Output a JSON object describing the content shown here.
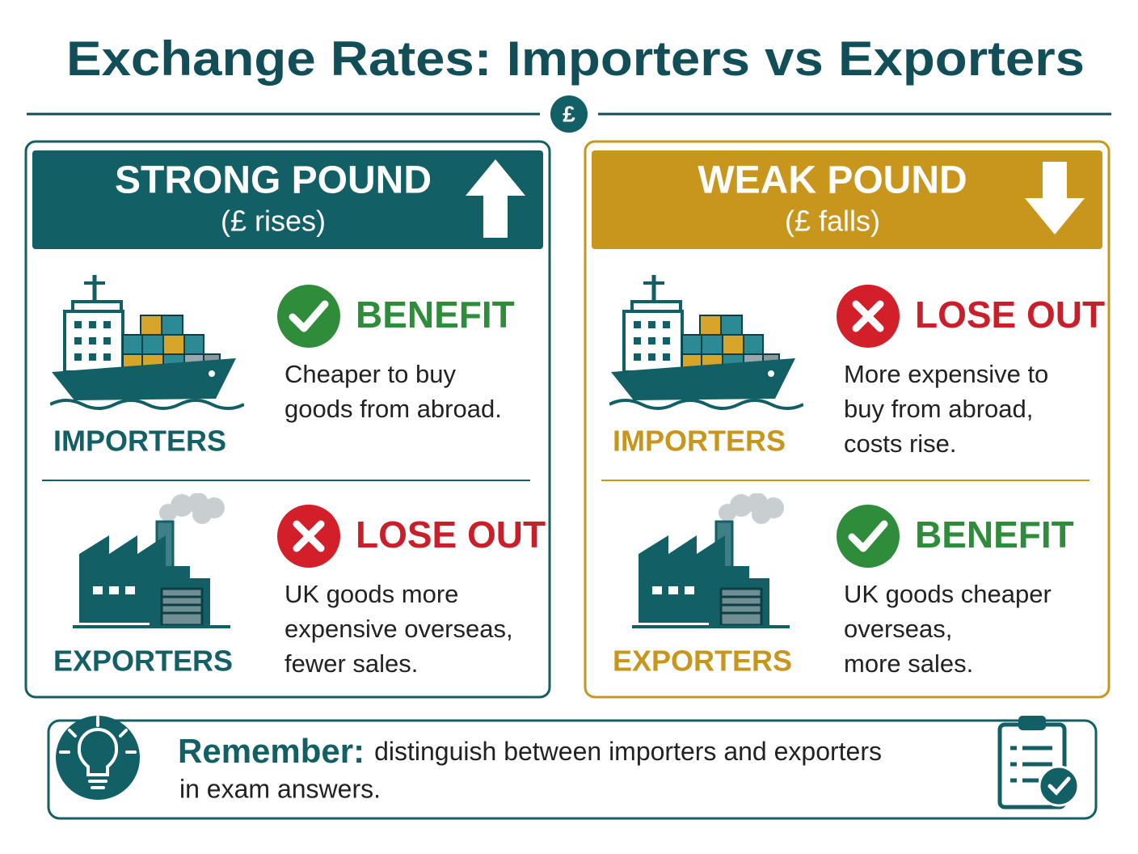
{
  "title": "Exchange Rates: Importers vs Exporters",
  "badge": "£",
  "panels": [
    {
      "heading": "STRONG POUND",
      "subheading": "(£ rises)",
      "rows": [
        {
          "group": "IMPORTERS",
          "verdict": "BENEFIT",
          "lines": [
            "Cheaper to buy",
            "goods from abroad."
          ]
        },
        {
          "group": "EXPORTERS",
          "verdict": "LOSE OUT",
          "lines": [
            "UK goods more",
            "expensive overseas,",
            "fewer sales."
          ]
        }
      ]
    },
    {
      "heading": "WEAK POUND",
      "subheading": "(£ falls)",
      "rows": [
        {
          "group": "IMPORTERS",
          "verdict": "LOSE OUT",
          "lines": [
            "More expensive to",
            "buy from abroad,",
            "costs rise."
          ]
        },
        {
          "group": "EXPORTERS",
          "verdict": "BENEFIT",
          "lines": [
            "UK goods cheaper",
            "overseas,",
            "more sales."
          ]
        }
      ]
    }
  ],
  "note": {
    "label": "Remember:",
    "lines": [
      "distinguish between importers and exporters",
      "in exam answers."
    ]
  }
}
